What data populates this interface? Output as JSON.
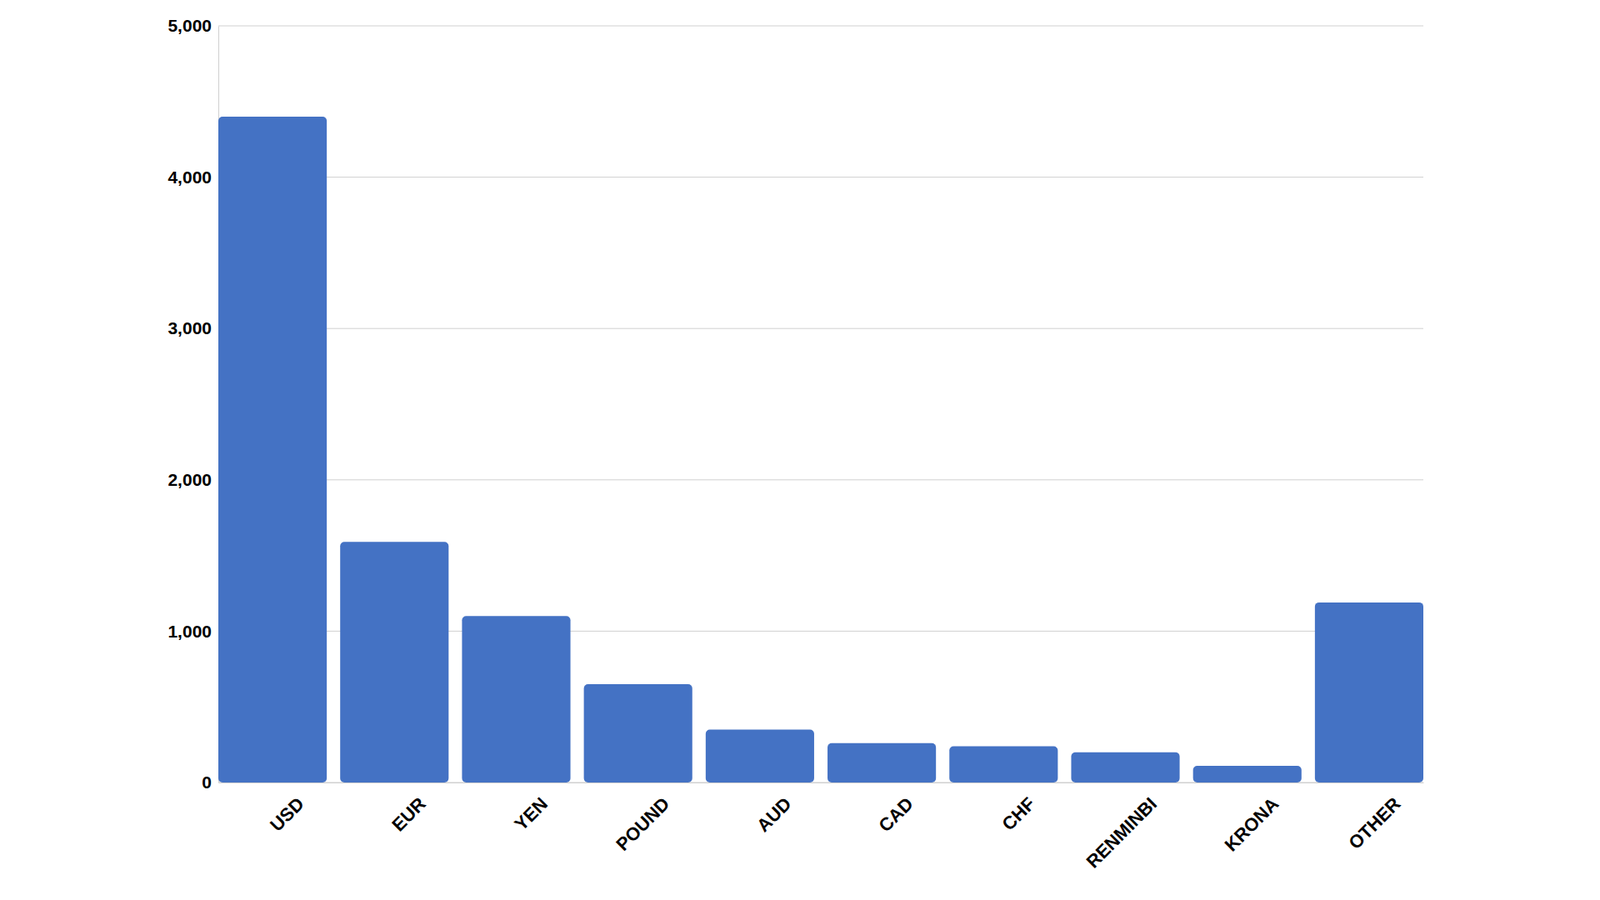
{
  "chart_data": {
    "type": "bar",
    "categories": [
      "USD",
      "EUR",
      "YEN",
      "POUND",
      "AUD",
      "CAD",
      "CHF",
      "RENMINBI",
      "KRONA",
      "OTHER"
    ],
    "values": [
      4400,
      1590,
      1100,
      650,
      350,
      260,
      240,
      200,
      110,
      1190
    ],
    "color": "#4472c4",
    "ylim": [
      0,
      5000
    ],
    "yticks": [
      0,
      {
        "value": 1000,
        "label": "1,000"
      },
      {
        "value": 2000,
        "label": "2,000"
      },
      {
        "value": 3000,
        "label": "3,000"
      },
      {
        "value": 4000,
        "label": "4,000"
      },
      {
        "value": 5000,
        "label": "5,000"
      }
    ],
    "grid": true
  }
}
